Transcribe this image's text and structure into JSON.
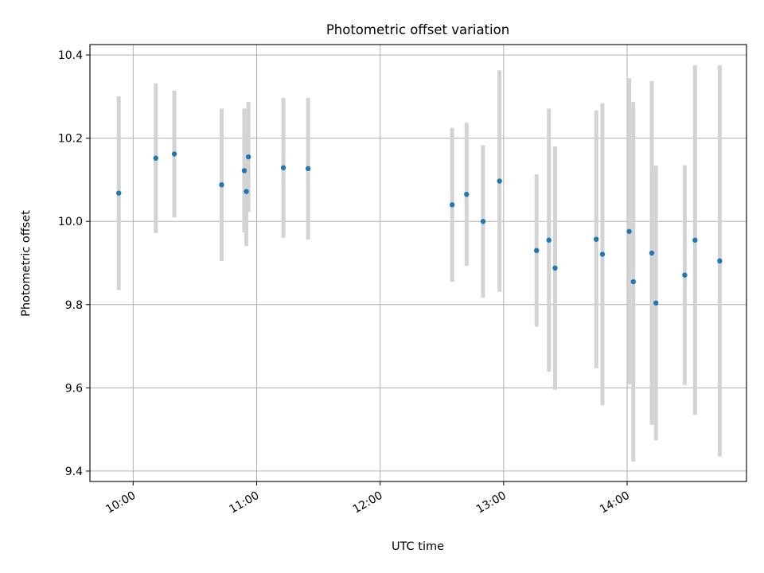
{
  "chart_data": {
    "type": "scatter",
    "title": "Photometric offset variation",
    "xlabel": "UTC time",
    "ylabel": "Photometric offset",
    "x_ticks": [
      "10:00",
      "11:00",
      "12:00",
      "13:00",
      "14:00"
    ],
    "y_ticks": [
      "9.4",
      "9.6",
      "9.8",
      "10.0",
      "10.2",
      "10.4"
    ],
    "x_tick_values": [
      10.0,
      11.0,
      12.0,
      13.0,
      14.0
    ],
    "y_tick_values": [
      9.4,
      9.6,
      9.8,
      10.0,
      10.2,
      10.4
    ],
    "xlim": [
      "09:39",
      "14:58"
    ],
    "ylim": [
      9.375,
      10.425
    ],
    "grid": true,
    "point_color": "#1f77b4",
    "errorbar_color": "#d3d3d3",
    "points": [
      {
        "x": "09:53",
        "y": 10.068,
        "err": 0.233
      },
      {
        "x": "10:11",
        "y": 10.152,
        "err": 0.18
      },
      {
        "x": "10:20",
        "y": 10.162,
        "err": 0.152
      },
      {
        "x": "10:43",
        "y": 10.088,
        "err": 0.183
      },
      {
        "x": "10:54",
        "y": 10.122,
        "err": 0.149
      },
      {
        "x": "10:55",
        "y": 10.072,
        "err": 0.131
      },
      {
        "x": "10:56",
        "y": 10.155,
        "err": 0.132
      },
      {
        "x": "11:13",
        "y": 10.129,
        "err": 0.168
      },
      {
        "x": "11:25",
        "y": 10.127,
        "err": 0.17
      },
      {
        "x": "12:35",
        "y": 10.04,
        "err": 0.185
      },
      {
        "x": "12:42",
        "y": 10.065,
        "err": 0.172
      },
      {
        "x": "12:50",
        "y": 10.0,
        "err": 0.183
      },
      {
        "x": "12:58",
        "y": 10.097,
        "err": 0.266
      },
      {
        "x": "13:16",
        "y": 9.93,
        "err": 0.183
      },
      {
        "x": "13:22",
        "y": 9.955,
        "err": 0.316
      },
      {
        "x": "13:25",
        "y": 9.888,
        "err": 0.292
      },
      {
        "x": "13:45",
        "y": 9.957,
        "err": 0.31
      },
      {
        "x": "13:48",
        "y": 9.921,
        "err": 0.363
      },
      {
        "x": "14:01",
        "y": 9.976,
        "err": 0.368
      },
      {
        "x": "14:03",
        "y": 9.855,
        "err": 0.432
      },
      {
        "x": "14:12",
        "y": 9.924,
        "err": 0.413
      },
      {
        "x": "14:14",
        "y": 9.804,
        "err": 0.33
      },
      {
        "x": "14:28",
        "y": 9.871,
        "err": 0.264
      },
      {
        "x": "14:33",
        "y": 9.955,
        "err": 0.42
      },
      {
        "x": "14:45",
        "y": 9.905,
        "err": 0.47
      }
    ]
  }
}
